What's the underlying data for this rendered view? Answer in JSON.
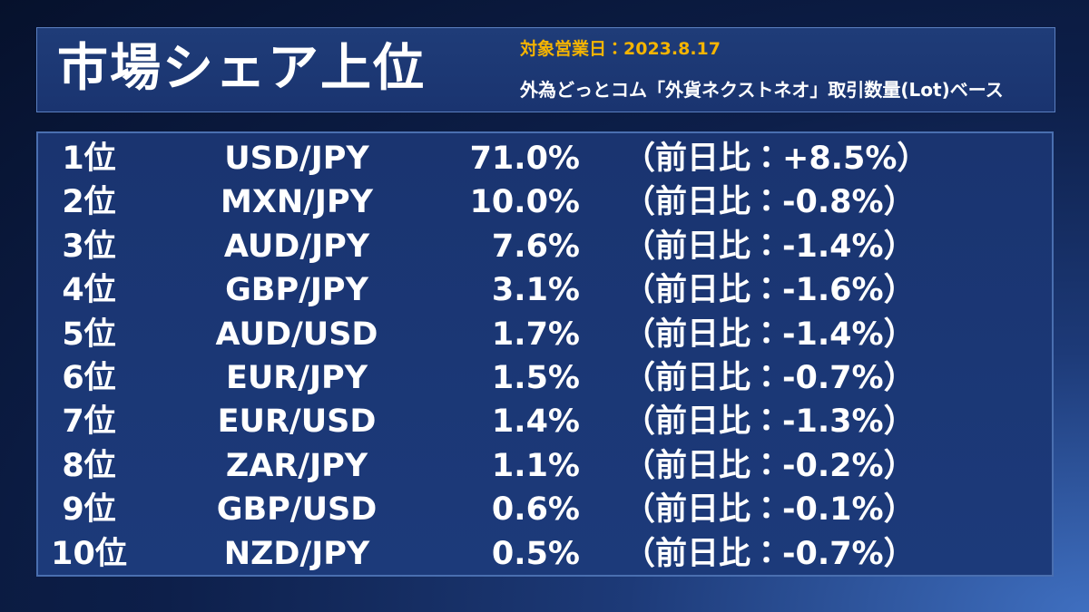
{
  "header": {
    "title": "市場シェア上位",
    "date": "対象営業日：2023.8.17",
    "subtitle": "外為どっとコム「外貨ネクストネオ」取引数量(Lot)ベース"
  },
  "table": {
    "rows": [
      [
        "1位",
        "USD/JPY",
        "71.0%",
        "（前日比：+8.5%）"
      ],
      [
        "2位",
        "MXN/JPY",
        "10.0%",
        "（前日比：-0.8%）"
      ],
      [
        "3位",
        "AUD/JPY",
        "7.6%",
        "（前日比：-1.4%）"
      ],
      [
        "4位",
        "GBP/JPY",
        "3.1%",
        "（前日比：-1.6%）"
      ],
      [
        "5位",
        "AUD/USD",
        "1.7%",
        "（前日比：-1.4%）"
      ],
      [
        "6位",
        "EUR/JPY",
        "1.5%",
        "（前日比：-0.7%）"
      ],
      [
        "7位",
        "EUR/USD",
        "1.4%",
        "（前日比：-1.3%）"
      ],
      [
        "8位",
        "ZAR/JPY",
        "1.1%",
        "（前日比：-0.2%）"
      ],
      [
        "9位",
        "GBP/USD",
        "0.6%",
        "（前日比：-0.1%）"
      ],
      [
        "10位",
        "NZD/JPY",
        "0.5%",
        "（前日比：-0.7%）"
      ]
    ]
  }
}
